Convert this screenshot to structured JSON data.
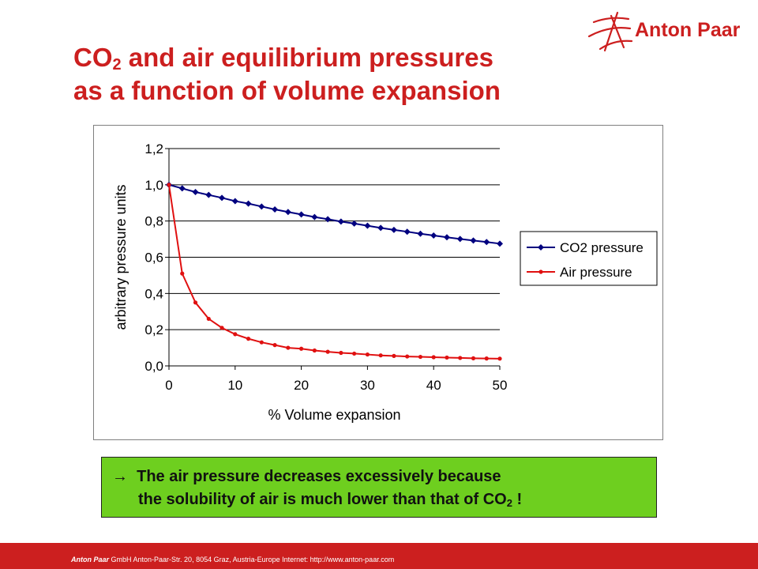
{
  "slide": {
    "title_line1_prefix": "CO",
    "title_line1_sub": "2",
    "title_line1_suffix": " and air equilibrium pressures",
    "title_line2": "as a function of volume expansion",
    "logo_text": "Anton Paar",
    "note_arrow": "→",
    "note_line1": "The air pressure decreases excessively because",
    "note_line2_prefix": "the solubility of air is much lower than that of CO",
    "note_line2_sub": "2",
    "note_line2_suffix": " !",
    "footer_company": "Anton Paar",
    "footer_rest": " GmbH   Anton-Paar-Str. 20, 8054 Graz, Austria-Europe   Internet: http://www.anton-paar.com"
  },
  "colors": {
    "title": "#cc1f1f",
    "footer": "#cc1f1f",
    "note_bg": "#6ecf1f",
    "co2_series": "#00007f",
    "air_series": "#e01010"
  },
  "chart_data": {
    "type": "line",
    "xlabel": "% Volume expansion",
    "ylabel": "arbitrary pressure units",
    "xlim": [
      0,
      50
    ],
    "ylim": [
      0,
      1.2
    ],
    "x_ticks": [
      "0",
      "10",
      "20",
      "30",
      "40",
      "50"
    ],
    "y_ticks": [
      "0,0",
      "0,2",
      "0,4",
      "0,6",
      "0,8",
      "1,0",
      "1,2"
    ],
    "grid": "horizontal",
    "legend": "right",
    "x": [
      0,
      2,
      4,
      6,
      8,
      10,
      12,
      14,
      16,
      18,
      20,
      22,
      24,
      26,
      28,
      30,
      32,
      34,
      36,
      38,
      40,
      42,
      44,
      46,
      48,
      50
    ],
    "series": [
      {
        "name": "CO2 pressure",
        "values": [
          1.0,
          0.98,
          0.96,
          0.944,
          0.928,
          0.91,
          0.896,
          0.88,
          0.864,
          0.85,
          0.836,
          0.822,
          0.81,
          0.797,
          0.786,
          0.774,
          0.762,
          0.751,
          0.741,
          0.73,
          0.72,
          0.71,
          0.701,
          0.692,
          0.684,
          0.675
        ]
      },
      {
        "name": "Air pressure",
        "values": [
          1.0,
          0.51,
          0.35,
          0.26,
          0.21,
          0.175,
          0.15,
          0.13,
          0.115,
          0.1,
          0.095,
          0.085,
          0.078,
          0.072,
          0.068,
          0.063,
          0.058,
          0.055,
          0.052,
          0.05,
          0.048,
          0.046,
          0.044,
          0.042,
          0.041,
          0.04
        ]
      }
    ]
  }
}
